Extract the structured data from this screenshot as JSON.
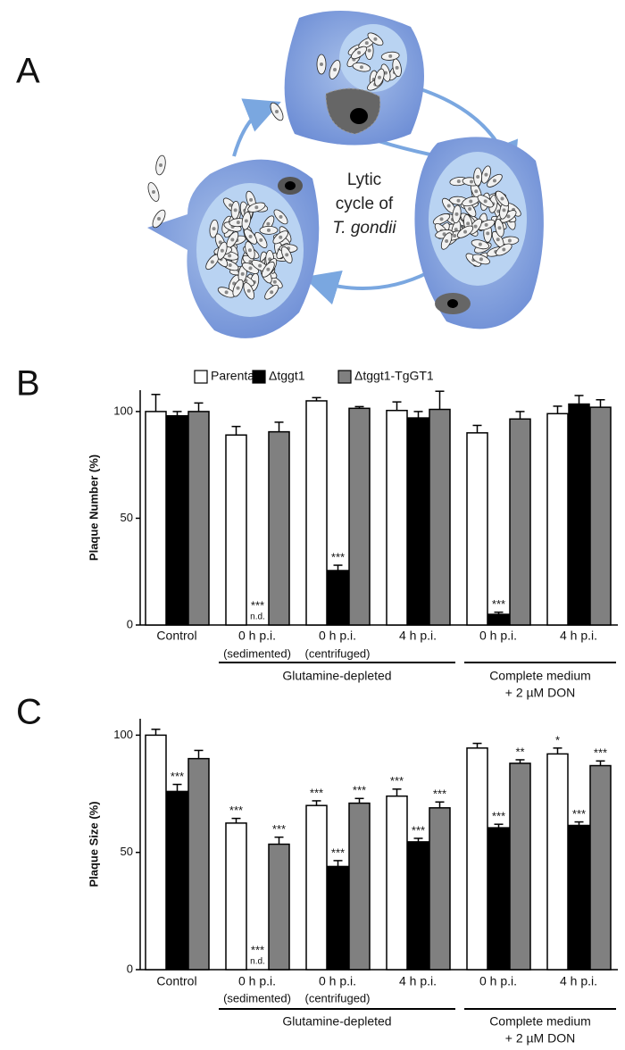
{
  "panel_a": {
    "label": "A",
    "caption": [
      "Lytic",
      "cycle of",
      "T. gondii"
    ]
  },
  "chart_data": [
    {
      "type": "bar",
      "panel_label": "B",
      "y_label": "Plaque Number (%)",
      "categories": [
        "Control",
        "0 h p.i.",
        "0 h p.i.",
        "4 h p.i.",
        "0 h p.i.",
        "4 h p.i."
      ],
      "category_notes": [
        null,
        "(sedimented)",
        "(centrifuged)",
        null,
        null,
        null
      ],
      "group_labels": [
        [
          "Glutamine-depleted"
        ],
        [
          "Complete medium",
          "+ 2  µM DON"
        ]
      ],
      "ylim": [
        0,
        110
      ],
      "yticks": [
        0,
        50,
        100
      ],
      "legend": "top",
      "series": [
        {
          "name": "Parental",
          "color": "#ffffff",
          "values": [
            100,
            89,
            105,
            100.5,
            90,
            99
          ],
          "errors": [
            8,
            4,
            1.5,
            4,
            3.5,
            3.5
          ],
          "labels": [
            null,
            null,
            null,
            null,
            null,
            null
          ],
          "notes": [
            null,
            null,
            null,
            null,
            null,
            null
          ]
        },
        {
          "name": "Δtggt1",
          "color": "#000000",
          "values": [
            98,
            null,
            25.5,
            97,
            5,
            103.5
          ],
          "errors": [
            2,
            null,
            2.5,
            3,
            1,
            4
          ],
          "labels": [
            null,
            "***",
            "***",
            null,
            "***",
            null
          ],
          "notes": [
            null,
            "n.d.",
            null,
            null,
            null,
            null
          ]
        },
        {
          "name": "Δtggt1-TgGT1",
          "color": "#808080",
          "values": [
            100,
            90.5,
            101.5,
            101,
            96.5,
            102
          ],
          "errors": [
            4,
            4.5,
            0.8,
            8.5,
            3.5,
            3.5
          ],
          "labels": [
            null,
            null,
            null,
            null,
            null,
            null
          ],
          "notes": [
            null,
            null,
            null,
            null,
            null,
            null
          ]
        }
      ]
    },
    {
      "type": "bar",
      "panel_label": "C",
      "y_label": "Plaque Size (%)",
      "categories": [
        "Control",
        "0 h p.i.",
        "0 h p.i.",
        "4 h p.i.",
        "0 h p.i.",
        "4 h p.i."
      ],
      "category_notes": [
        null,
        "(sedimented)",
        "(centrifuged)",
        null,
        null,
        null
      ],
      "group_labels": [
        [
          "Glutamine-depleted"
        ],
        [
          "Complete medium",
          "+ 2  µM DON"
        ]
      ],
      "ylim": [
        0,
        107
      ],
      "yticks": [
        0,
        50,
        100
      ],
      "series": [
        {
          "color": "#ffffff",
          "values": [
            100,
            62.5,
            70,
            74,
            94.5,
            92
          ],
          "errors": [
            2.5,
            2,
            2,
            3,
            2,
            2.5
          ],
          "labels": [
            null,
            "***",
            "***",
            "***",
            null,
            "*"
          ],
          "notes": [
            null,
            null,
            null,
            null,
            null,
            null
          ]
        },
        {
          "color": "#000000",
          "values": [
            76,
            null,
            44,
            54.5,
            60.5,
            61.5
          ],
          "errors": [
            3,
            null,
            2.5,
            1.5,
            1.5,
            1.5
          ],
          "labels": [
            "***",
            "***",
            "***",
            "***",
            "***",
            "***"
          ],
          "notes": [
            null,
            "n.d.",
            null,
            null,
            null,
            null
          ]
        },
        {
          "color": "#808080",
          "values": [
            90,
            53.5,
            71,
            69,
            88,
            87
          ],
          "errors": [
            3.5,
            3,
            2,
            2.5,
            1.5,
            2
          ],
          "labels": [
            null,
            "***",
            "***",
            "***",
            "**",
            "***"
          ],
          "notes": [
            null,
            null,
            null,
            null,
            null,
            null
          ]
        }
      ]
    }
  ]
}
